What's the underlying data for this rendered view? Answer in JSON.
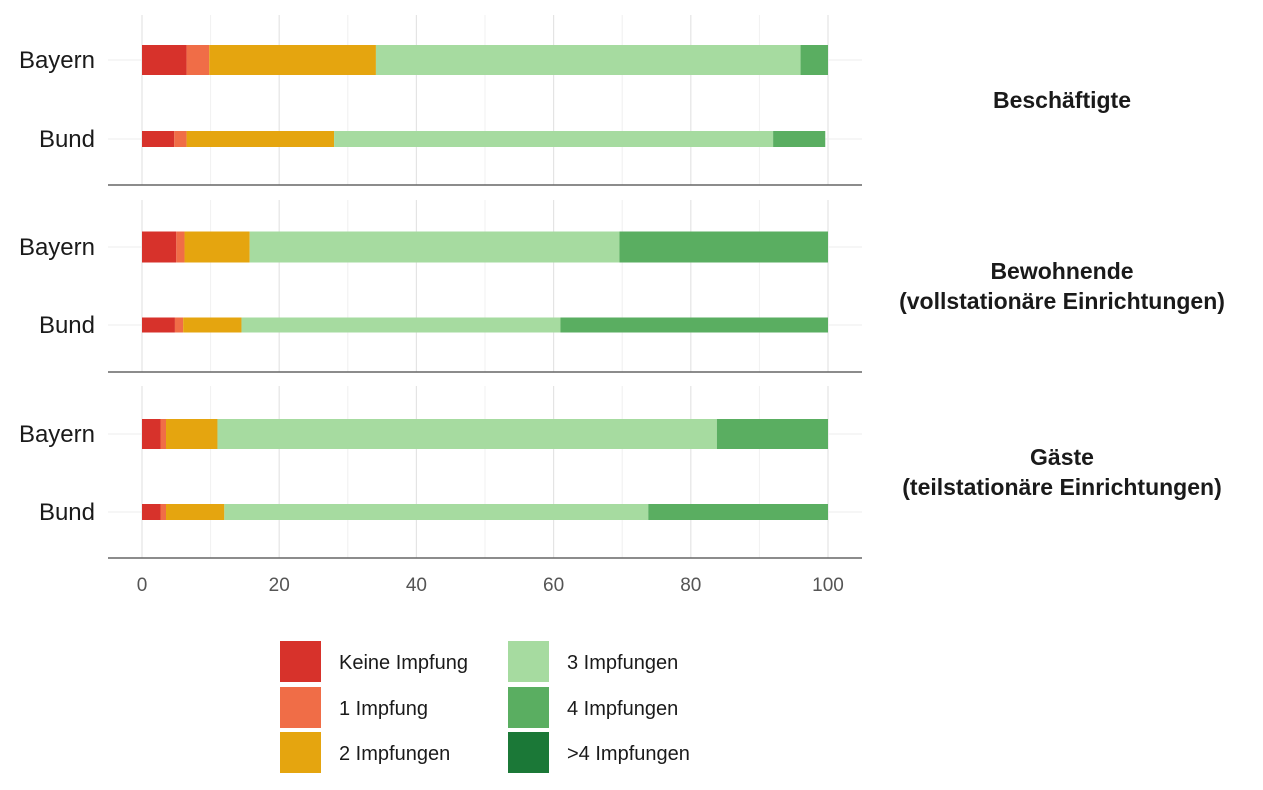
{
  "chart_data": {
    "type": "bar",
    "orientation": "horizontal",
    "stacked": true,
    "xlim": [
      0,
      100
    ],
    "x_ticks": [
      "0",
      "20",
      "40",
      "60",
      "80",
      "100"
    ],
    "grid": true,
    "legend_position": "bottom",
    "series_names": [
      "Keine Impfung",
      "1 Impfung",
      "2 Impfungen",
      "3 Impfungen",
      "4 Impfungen",
      ">4 Impfungen"
    ],
    "colors": [
      "#d7322b",
      "#f06d47",
      "#e5a50f",
      "#a6dba0",
      "#5aae61",
      "#1b7837"
    ],
    "facets": [
      {
        "label": "Beschäftigte",
        "label_lines": [
          "Beschäftigte"
        ],
        "categories": [
          "Bayern",
          "Bund"
        ],
        "values": [
          [
            6.5,
            3.3,
            24.3,
            61.9,
            4.0,
            0
          ],
          [
            4.7,
            1.8,
            21.5,
            64.0,
            7.6,
            0
          ]
        ]
      },
      {
        "label": "Bewohnende (vollstationäre Einrichtungen)",
        "label_lines": [
          "Bewohnende",
          "(vollstationäre Einrichtungen)"
        ],
        "categories": [
          "Bayern",
          "Bund"
        ],
        "values": [
          [
            5.0,
            1.2,
            9.5,
            53.9,
            30.4,
            0
          ],
          [
            4.8,
            1.2,
            8.5,
            46.5,
            39.0,
            0
          ]
        ]
      },
      {
        "label": "Gäste (teilstationäre Einrichtungen)",
        "label_lines": [
          "Gäste",
          "(teilstationäre Einrichtungen)"
        ],
        "categories": [
          "Bayern",
          "Bund"
        ],
        "values": [
          [
            2.7,
            0.8,
            7.5,
            72.8,
            16.2,
            0
          ],
          [
            2.7,
            0.8,
            8.5,
            61.8,
            26.2,
            0
          ]
        ]
      }
    ]
  }
}
